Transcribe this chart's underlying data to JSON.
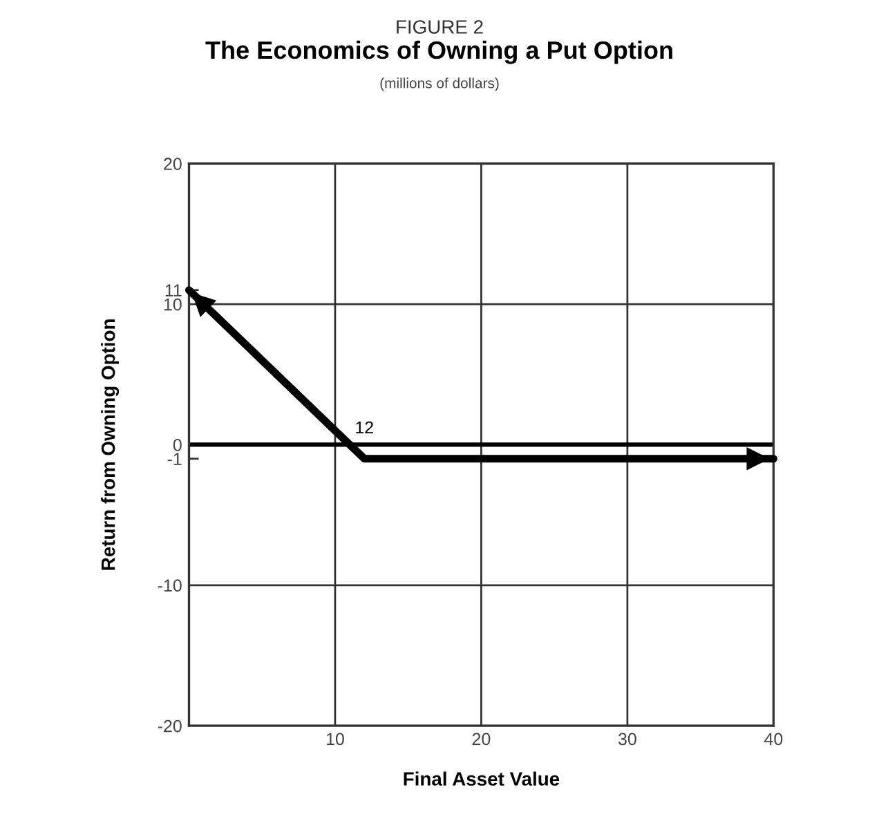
{
  "chart_data": {
    "type": "line",
    "title": "The Economics of Owning a Put Option",
    "subtitle": "(millions of dollars)",
    "xlabel": "Final Asset Value",
    "ylabel": "Return from Owning Option",
    "annotations": [
      "FIGURE 2",
      {
        "text": "12",
        "x": 12,
        "y": 0
      }
    ],
    "x": [
      0,
      12,
      40
    ],
    "series": [
      {
        "color": "#000000",
        "values": [
          11,
          -1,
          -1
        ]
      }
    ],
    "xlim": [
      0,
      40
    ],
    "xticks": [
      10,
      20,
      30,
      40
    ],
    "ylim": [
      -20,
      20
    ],
    "yticks": [
      -20,
      {
        "value": -1,
        "label": "-1"
      },
      -10,
      0,
      10,
      {
        "value": 11,
        "label": "11"
      },
      20
    ],
    "ref_lines": [
      {
        "axis": "y",
        "value": 0,
        "color": "#000000"
      }
    ],
    "grid": true,
    "marker": "none",
    "line_style": "solid"
  }
}
